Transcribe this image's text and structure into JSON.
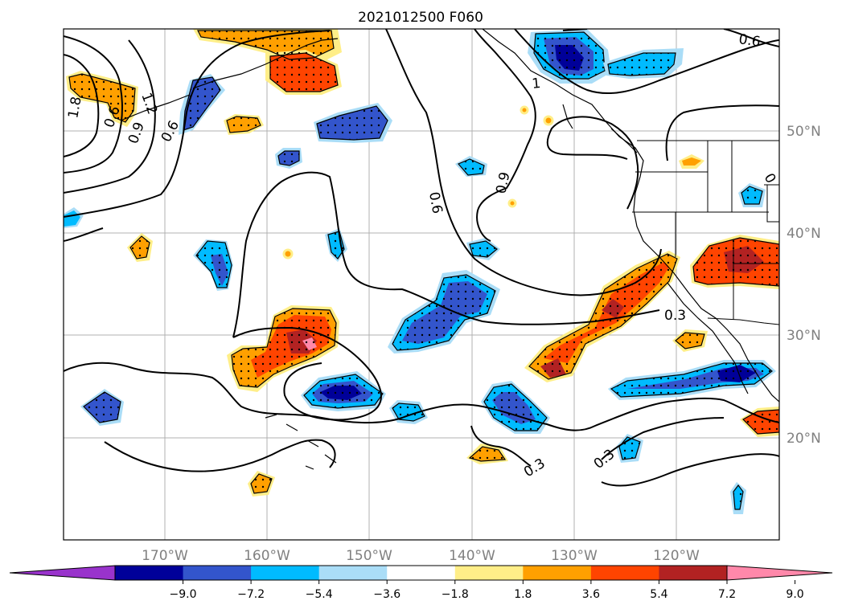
{
  "title": "2021012500 F060",
  "lat_labels": [
    "50°N",
    "40°N",
    "30°N",
    "20°N"
  ],
  "lon_labels": [
    "170°W",
    "160°W",
    "150°W",
    "140°W",
    "130°W",
    "120°W"
  ],
  "colorbar": {
    "ticks": [
      "−9.0",
      "−7.2",
      "−5.4",
      "−3.6",
      "−1.8",
      "1.8",
      "3.6",
      "5.4",
      "7.2",
      "9.0"
    ],
    "colors": [
      "#9933cc",
      "#000099",
      "#3355cc",
      "#00bbff",
      "#aaddf7",
      "#ffffff",
      "#ffee88",
      "#ffa000",
      "#ff4400",
      "#b22222",
      "#ff88aa"
    ]
  },
  "contour_labels": [
    "0.6",
    "1.8",
    "1.2",
    "0.9",
    "0.6",
    "0.9",
    "0.6",
    "1",
    "0.6",
    "0.9",
    "0.3",
    "0.3",
    "0.3",
    "0"
  ],
  "colors": {
    "grid": "#b0b0b0",
    "contour": "#000000",
    "coast": "#000000"
  }
}
